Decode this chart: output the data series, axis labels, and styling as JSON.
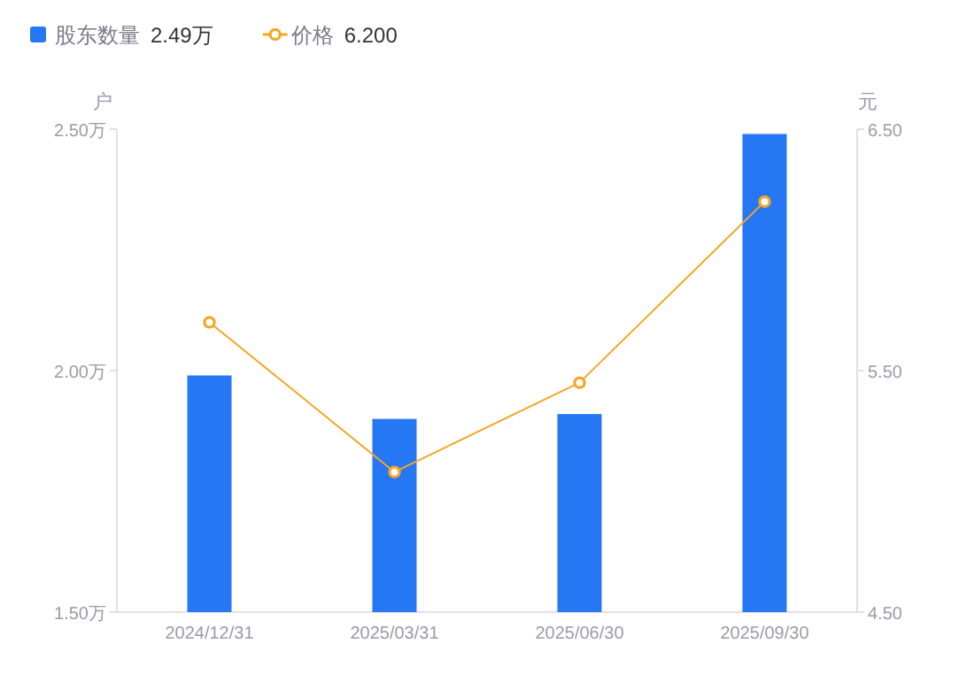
{
  "chart_data": {
    "type": "bar",
    "categories": [
      "2024/12/31",
      "2025/03/31",
      "2025/06/30",
      "2025/09/30"
    ],
    "ylabel": "户",
    "y2label": "元",
    "ylim": [
      1.5,
      2.5
    ],
    "yticks": [
      {
        "value": 1.5,
        "label": "1.50万"
      },
      {
        "value": 2.0,
        "label": "2.00万"
      },
      {
        "value": 2.5,
        "label": "2.50万"
      }
    ],
    "y2lim": [
      4.5,
      6.5
    ],
    "y2ticks": [
      {
        "value": 4.5,
        "label": "4.50"
      },
      {
        "value": 5.5,
        "label": "5.50"
      },
      {
        "value": 6.5,
        "label": "6.50"
      }
    ],
    "series": [
      {
        "name": "股东数量",
        "color": "#2577f4",
        "values": [
          1.99,
          1.9,
          1.91,
          2.49
        ]
      },
      {
        "name": "价格",
        "type": "line",
        "axis": "y2",
        "color": "#f5a623",
        "marker": "circle",
        "values": [
          5.7,
          5.08,
          5.45,
          6.2
        ]
      }
    ],
    "annotations": [
      "2.49万",
      "6.200"
    ],
    "legend": "top left",
    "grid": false
  }
}
